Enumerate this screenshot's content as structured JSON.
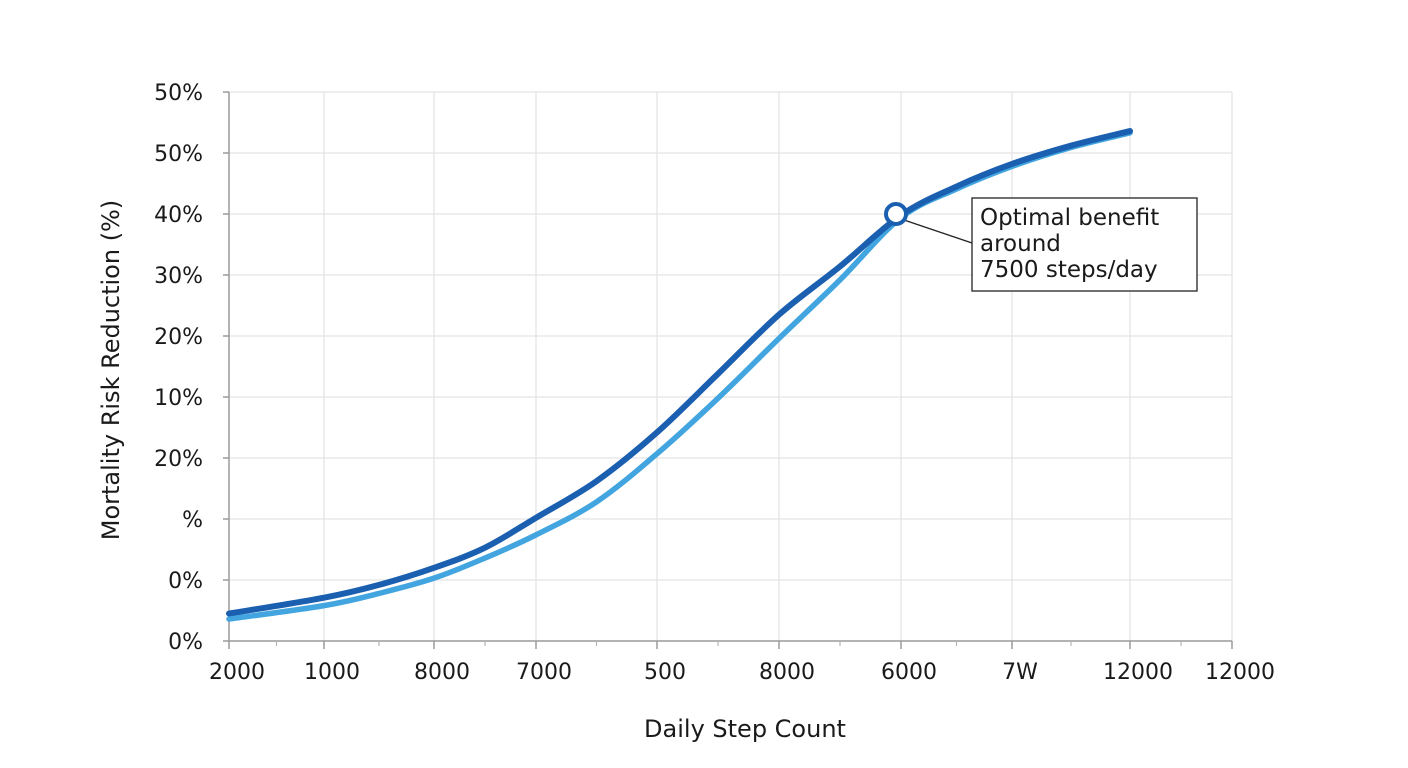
{
  "chart_data": {
    "type": "line",
    "title": "",
    "xlabel": "Daily Step Count",
    "ylabel": "Mortality Risk Reduction (%)",
    "x_tick_labels": [
      "2000",
      "1000",
      "8000",
      "7000",
      "500",
      "8000",
      "6000",
      "7W",
      "12000",
      "12000"
    ],
    "y_tick_labels": [
      "0%",
      "0%",
      "%",
      "20%",
      "10%",
      "20%",
      "30%",
      "40%",
      "50%",
      "50%"
    ],
    "xlim": [
      0,
      9
    ],
    "ylim": [
      0,
      9
    ],
    "grid": true,
    "legend": "none",
    "series": [
      {
        "color": "#1a5fb0",
        "points": [
          [
            0,
            0.45
          ],
          [
            1,
            0.71
          ],
          [
            1.5,
            0.92
          ],
          [
            2,
            1.2
          ],
          [
            2.5,
            1.53
          ],
          [
            3,
            2.02
          ],
          [
            3.5,
            2.62
          ],
          [
            4,
            3.42
          ],
          [
            4.5,
            4.38
          ],
          [
            5,
            5.35
          ],
          [
            5.5,
            6.14
          ],
          [
            6,
            6.98
          ],
          [
            6.5,
            7.45
          ],
          [
            7,
            7.82
          ],
          [
            7.5,
            8.12
          ],
          [
            8,
            8.36
          ]
        ]
      },
      {
        "color": "#42a5e0",
        "points": [
          [
            0,
            0.36
          ],
          [
            1,
            0.58
          ],
          [
            1.5,
            0.78
          ],
          [
            2,
            1.03
          ],
          [
            2.5,
            1.36
          ],
          [
            3,
            1.74
          ],
          [
            3.5,
            2.28
          ],
          [
            4,
            3.07
          ],
          [
            4.5,
            3.98
          ],
          [
            5,
            4.96
          ],
          [
            5.5,
            5.92
          ],
          [
            6,
            6.94
          ],
          [
            6.5,
            7.41
          ],
          [
            7,
            7.78
          ],
          [
            7.5,
            8.09
          ],
          [
            8,
            8.33
          ]
        ]
      }
    ],
    "annotation": {
      "lines": [
        "Optimal benefit",
        "around",
        "7500 steps/day"
      ],
      "x": 6,
      "y": 7
    }
  }
}
